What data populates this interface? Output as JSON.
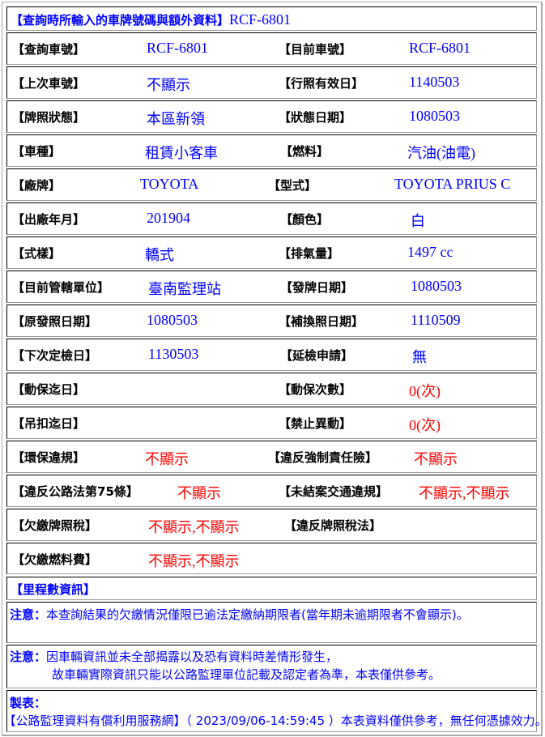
{
  "title": {
    "label": "【查詢時所輸入的車牌號碼與額外資料】",
    "plate": "RCF-6801"
  },
  "rows": [
    {
      "l1": "【查詢車號】",
      "v1": "RCF-6801",
      "l2": "【目前車號】",
      "v2": "RCF-6801"
    },
    {
      "l1": "【上次車號】",
      "v1": "不顯示",
      "l2": "【行照有效日】",
      "v2": "1140503"
    },
    {
      "l1": "【牌照狀態】",
      "v1": "本區新領",
      "l2": "【狀態日期】",
      "v2": "1080503"
    },
    {
      "l1": "【車種】",
      "v1": "租賃小客車",
      "l2": "【燃料】",
      "v2": "汽油(油電)"
    },
    {
      "l1": "【廠牌】",
      "v1": "TOYOTA",
      "l2": "【型式】",
      "v2": "TOYOTA PRIUS C"
    },
    {
      "l1": "【出廠年月】",
      "v1": "201904",
      "l2": "【顏色】",
      "v2": "白"
    },
    {
      "l1": "【式樣】",
      "v1": "轎式",
      "l2": "【排氣量】",
      "v2": "1497 cc"
    },
    {
      "l1": "【目前管轄單位】",
      "v1": "臺南監理站",
      "l2": "【發牌日期】",
      "v2": "1080503"
    },
    {
      "l1": "【原發照日期】",
      "v1": "1080503",
      "l2": "【補換照日期】",
      "v2": "1110509"
    },
    {
      "l1": "【下次定檢日】",
      "v1": "1130503",
      "l2": "【延檢申請】",
      "v2": "無"
    },
    {
      "l1": "【動保迄日】",
      "v1": "",
      "l2": "【動保次數】",
      "v2": "0(次)"
    },
    {
      "l1": "【吊扣迄日】",
      "v1": "",
      "l2": "【禁止異動】",
      "v2": "0(次)"
    },
    {
      "l1": "【環保違規】",
      "v1": "不顯示",
      "l2": "【違反強制責任險】",
      "v2": "不顯示"
    },
    {
      "l1": "【違反公路法第75條】",
      "v1": "不顯示",
      "l2": "【未結案交通違規】",
      "v2": "不顯示,不顯示"
    },
    {
      "l1": "【欠繳牌照稅】",
      "v1": "不顯示,不顯示",
      "l2": "【違反牌照稅法】",
      "v2": ""
    },
    {
      "l1": "【欠繳燃料費】",
      "v1": "不顯示,不顯示",
      "l2": "",
      "v2": ""
    }
  ],
  "mileage": "【里程數資訊】",
  "notes": [
    {
      "label": "注意：",
      "text": "本查詢結果的欠繳情況僅限已逾法定繳納期限者(當年期未逾期限者不會顯示)。"
    },
    {
      "label": "注意：",
      "line1": "因車輛資訊並未全部揭露以及恐有資料時差情形發生，",
      "line2": "故車輛實際資訊只能以公路監理單位記載及認定者為準，本表僅供參考。"
    },
    {
      "label": "製表：",
      "text": "【公路監理資料有償利用服務網】（ 2023/09/06-14:59:45 ）本表資料僅供參考，無任何憑據效力。"
    }
  ],
  "colors": {
    "value": "#0000ff",
    "warning": "#ff0000"
  }
}
